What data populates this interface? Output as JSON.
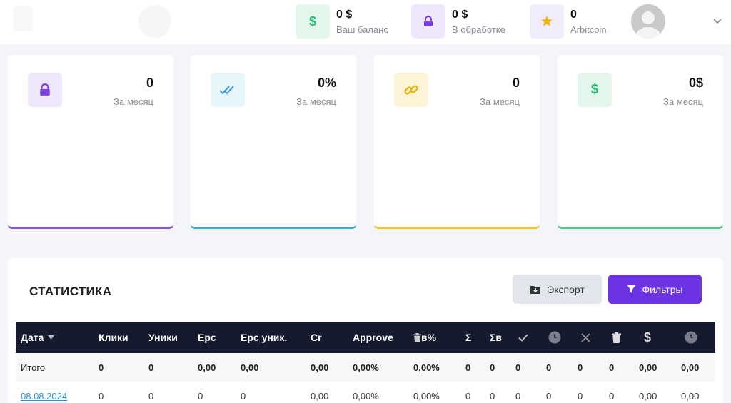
{
  "header": {
    "balance": {
      "value": "0 $",
      "label": "Ваш баланс",
      "icon": "dollar-icon",
      "color": "#2bb673"
    },
    "processing": {
      "value": "0 $",
      "label": "В обработке",
      "icon": "lock-icon",
      "color": "#7b3fe4"
    },
    "arbitcoin": {
      "value": "0",
      "label": "Arbitcoin",
      "icon": "star-icon",
      "color": "#f0b400"
    }
  },
  "cards": [
    {
      "value": "0",
      "label": "За месяц",
      "icon": "lock-icon",
      "accent": "#8a4fe0"
    },
    {
      "value": "0%",
      "label": "За месяц",
      "icon": "double-check-icon",
      "accent": "#2eb6cf"
    },
    {
      "value": "0",
      "label": "За месяц",
      "icon": "link-icon",
      "accent": "#f5c518"
    },
    {
      "value": "0$",
      "label": "За месяц",
      "icon": "dollar-icon",
      "accent": "#44cc88"
    }
  ],
  "stats": {
    "title": "СТАТИСТИКА",
    "export_label": "Экспорт",
    "filter_label": "Фильтры",
    "columns": {
      "date": "Дата",
      "clicks": "Клики",
      "uniques": "Уники",
      "epc": "Epc",
      "epc_unique": "Epc уник.",
      "cr": "Cr",
      "approve": "Approve",
      "trash_percent": "в%",
      "sigma": "Σ",
      "sigma_v": "Σв"
    },
    "total": {
      "label": "Итого",
      "values": [
        "0",
        "0",
        "0,00",
        "0,00",
        "0,00",
        "0,00%",
        "0,00%",
        "0",
        "0",
        "0",
        "0",
        "0",
        "0",
        "0,00",
        "0,00"
      ]
    },
    "rows": [
      {
        "date": "08.08.2024",
        "values": [
          "0",
          "0",
          "0",
          "0",
          "0,00",
          "0,00%",
          "0,00%",
          "0",
          "0",
          "0",
          "0",
          "0",
          "0",
          "0,00",
          "0,00"
        ]
      }
    ]
  }
}
